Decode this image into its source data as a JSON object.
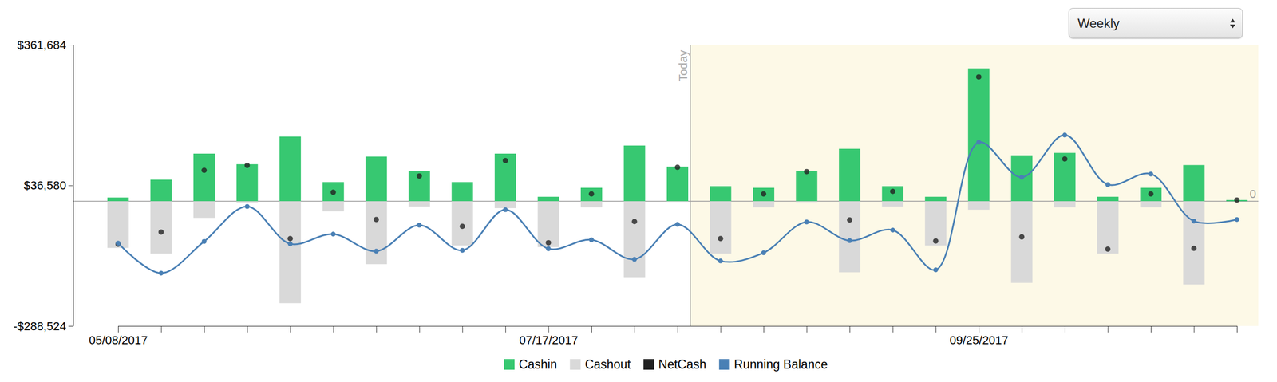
{
  "chart_data": {
    "type": "bar",
    "categories": [
      "05/08/2017",
      null,
      null,
      null,
      null,
      null,
      null,
      null,
      null,
      null,
      "07/17/2017",
      null,
      null,
      null,
      null,
      null,
      null,
      null,
      null,
      null,
      "09/25/2017",
      null,
      null,
      null,
      null,
      null,
      null
    ],
    "series": [
      {
        "name": "Cashin",
        "type": "bar",
        "color": "#37c871",
        "values": [
          8500,
          49800,
          110000,
          85500,
          149400,
          44200,
          103200,
          70500,
          44200,
          110000,
          10300,
          31000,
          128700,
          79900,
          34800,
          31000,
          70500,
          121200,
          34800,
          10300,
          307200,
          106200,
          111800,
          10300,
          31000,
          83600,
          2800
        ]
      },
      {
        "name": "Cashout",
        "type": "bar",
        "color": "#d9d9d9",
        "values": [
          -108000,
          -121200,
          -38500,
          -2800,
          -235800,
          -23500,
          -145600,
          -12200,
          -102400,
          -16000,
          -106200,
          -14100,
          -175700,
          -1500,
          -121200,
          -14100,
          -2000,
          -164400,
          -12200,
          -102400,
          -19700,
          -188800,
          -14100,
          -121200,
          -14100,
          -192600,
          0
        ]
      },
      {
        "name": "NetCash",
        "type": "scatter",
        "color": "#222222",
        "marker": "circle",
        "values": [
          -99500,
          -71400,
          71500,
          82700,
          -86400,
          20700,
          -42400,
          58300,
          -58200,
          94000,
          -95900,
          16900,
          -47000,
          78400,
          -86400,
          16900,
          68500,
          -43200,
          22600,
          -92100,
          287500,
          -82600,
          97700,
          -110900,
          16900,
          -109000,
          2800
        ]
      },
      {
        "name": "Running Balance",
        "type": "line",
        "color": "#4a80b5",
        "marker": "circle",
        "line_style": "solid",
        "values": [
          -97000,
          -166300,
          -93000,
          -12200,
          -98600,
          -76100,
          -115600,
          -55400,
          -113700,
          -19700,
          -109900,
          -89300,
          -134400,
          -53600,
          -138100,
          -119300,
          -47900,
          -91100,
          -66700,
          -158800,
          136200,
          55400,
          153100,
          38500,
          62900,
          -46000,
          -42300
        ]
      }
    ],
    "ylim": [
      -288524,
      361684
    ],
    "yticks": [
      {
        "value": -288524,
        "label": "-$288,524"
      },
      {
        "value": 36580,
        "label": "$36,580"
      },
      {
        "value": 361684,
        "label": "$361,684"
      }
    ],
    "annotations": [
      {
        "text": "Today",
        "x": 13.3
      },
      {
        "text": "0",
        "y": 0
      }
    ],
    "grid": false,
    "legend": "bottom"
  },
  "controls": {
    "period": "Weekly"
  }
}
